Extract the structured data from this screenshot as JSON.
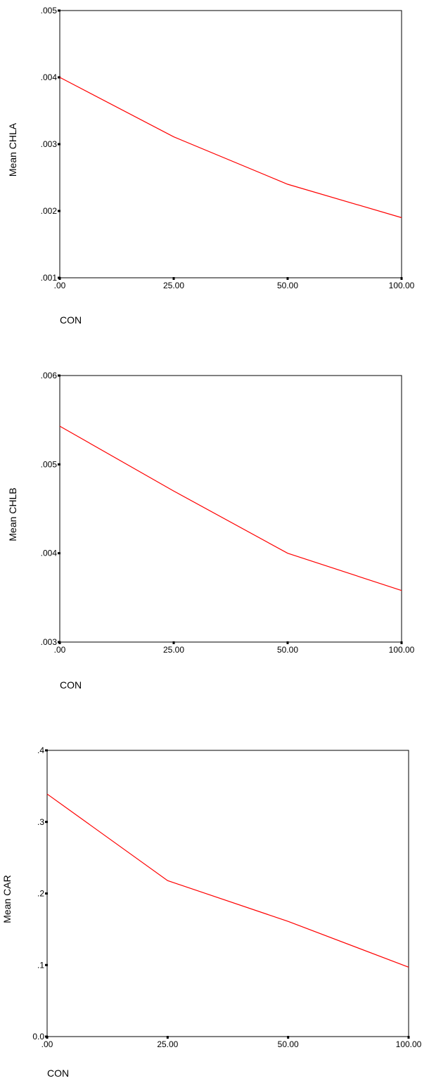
{
  "chart_data": [
    {
      "type": "line",
      "title": "",
      "xlabel": "CON",
      "ylabel": "Mean CHLA",
      "categories": [
        ".00",
        "25.00",
        "50.00",
        "100.00"
      ],
      "values": [
        0.004,
        0.00311,
        0.0024,
        0.0019
      ],
      "ylim": [
        0.001,
        0.005
      ],
      "yticks": [
        ".001",
        ".002",
        ".003",
        ".004",
        ".005"
      ],
      "grid": false,
      "line_color": "#ff0000"
    },
    {
      "type": "line",
      "title": "",
      "xlabel": "CON",
      "ylabel": "Mean CHLB",
      "categories": [
        ".00",
        "25.00",
        "50.00",
        "100.00"
      ],
      "values": [
        0.00543,
        0.0047,
        0.004,
        0.00358
      ],
      "ylim": [
        0.003,
        0.006
      ],
      "yticks": [
        ".003",
        ".004",
        ".005",
        ".006"
      ],
      "grid": false,
      "line_color": "#ff0000"
    },
    {
      "type": "line",
      "title": "",
      "xlabel": "CON",
      "ylabel": "Mean CAR",
      "categories": [
        ".00",
        "25.00",
        "50.00",
        "100.00"
      ],
      "values": [
        0.339,
        0.218,
        0.161,
        0.097
      ],
      "ylim": [
        0.0,
        0.4
      ],
      "yticks": [
        "0.0",
        ".1",
        ".2",
        ".3",
        ".4"
      ],
      "grid": false,
      "line_color": "#ff0000"
    }
  ]
}
